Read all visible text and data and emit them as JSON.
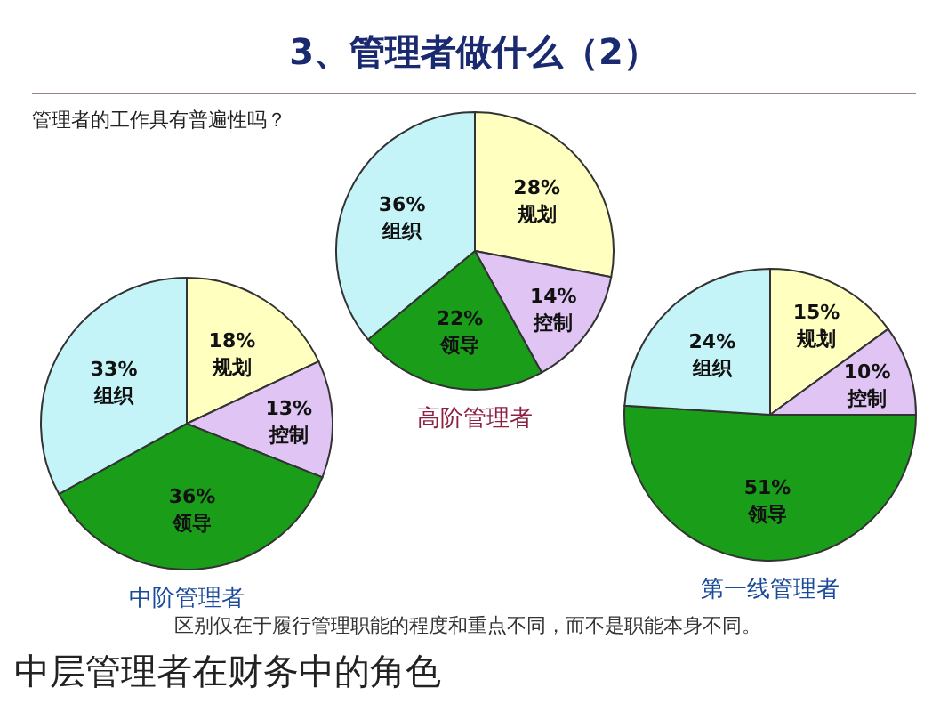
{
  "chart_data": [
    {
      "type": "pie",
      "title": "3、管理者做什么（2）",
      "subtitle": "管理者的工作具有普遍性吗？",
      "xlabel": "高阶管理者",
      "categories": [
        "规划",
        "控制",
        "领导",
        "组织"
      ],
      "values": [
        28,
        14,
        22,
        36
      ],
      "value_labels": [
        "28%",
        "14%",
        "22%",
        "36%"
      ],
      "colors": [
        "#ffffc0",
        "#e0c4f4",
        "#1a9e1a",
        "#c4f4f8"
      ]
    },
    {
      "type": "pie",
      "xlabel": "中阶管理者",
      "categories": [
        "规划",
        "控制",
        "领导",
        "组织"
      ],
      "values": [
        18,
        13,
        36,
        33
      ],
      "value_labels": [
        "18%",
        "13%",
        "36%",
        "33%"
      ],
      "colors": [
        "#ffffc0",
        "#e0c4f4",
        "#1a9e1a",
        "#c4f4f8"
      ]
    },
    {
      "type": "pie",
      "xlabel": "第一线管理者",
      "categories": [
        "规划",
        "控制",
        "领导",
        "组织"
      ],
      "values": [
        15,
        10,
        51,
        24
      ],
      "value_labels": [
        "15%",
        "10%",
        "51%",
        "24%"
      ],
      "colors": [
        "#ffffc0",
        "#e0c4f4",
        "#1a9e1a",
        "#c4f4f8"
      ],
      "annotations": [
        "区别仅在于履行管理职能的程度和重点不同，而不是职能本身不同。",
        "中层管理者在财务中的角色"
      ]
    }
  ]
}
